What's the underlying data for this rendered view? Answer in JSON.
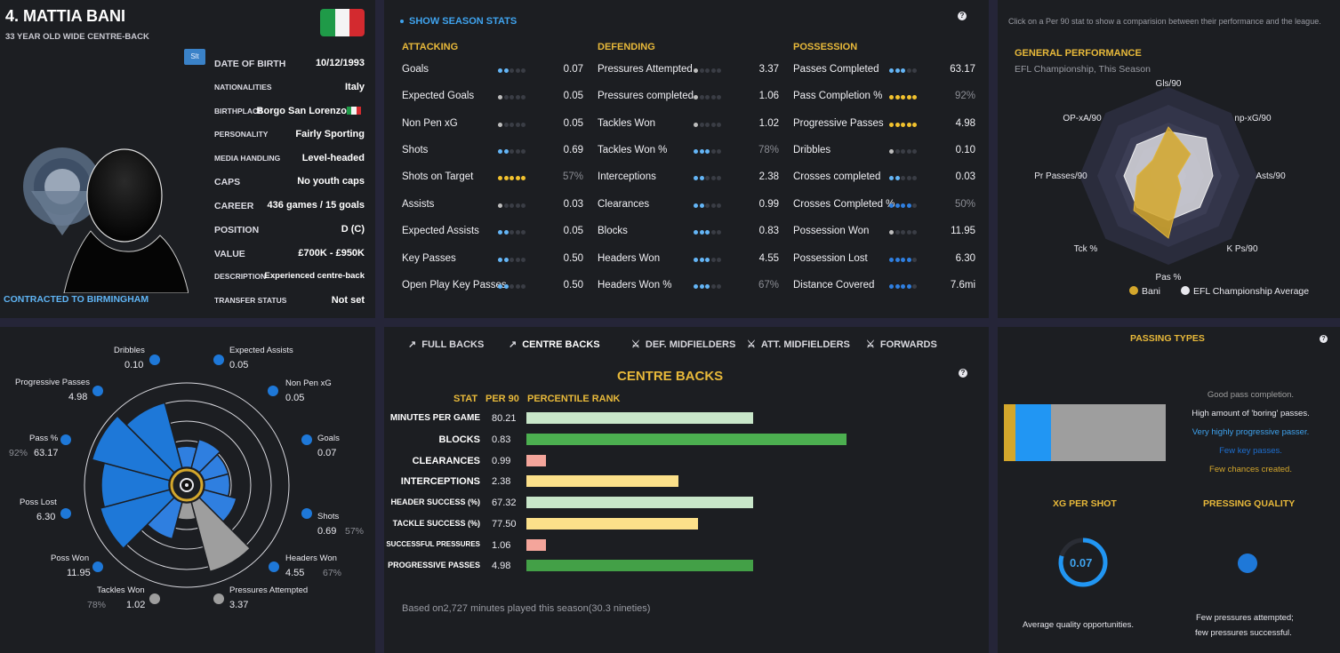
{
  "player": {
    "name": "4. MATTIA BANI",
    "subtitle": "33 YEAR OLD  WIDE CENTRE-BACK",
    "badge": "Slt",
    "contract": "CONTRACTED TO BIRMINGHAM",
    "info": [
      {
        "label": "DATE OF BIRTH",
        "value": "10/12/1993"
      },
      {
        "label": "NATIONALITIES",
        "value": "Italy"
      },
      {
        "label": "BIRTHPLACE",
        "value": "Borgo San Lorenzo"
      },
      {
        "label": "PERSONALITY",
        "value": "Fairly Sporting"
      },
      {
        "label": "MEDIA HANDLING",
        "value": "Level-headed"
      },
      {
        "label": "CAPS",
        "value": "No youth caps"
      },
      {
        "label": "CAREER",
        "value": "436 games /  15 goals"
      },
      {
        "label": "POSITION",
        "value": "D (C)"
      },
      {
        "label": "VALUE",
        "value": "£700K - £950K"
      },
      {
        "label": "DESCRIPTION",
        "value": "Experienced centre-back"
      },
      {
        "label": "TRANSFER STATUS",
        "value": "Not set"
      }
    ]
  },
  "season": {
    "toggle": "SHOW SEASON STATS",
    "help": "?",
    "attacking": {
      "title": "ATTACKING",
      "rows": [
        {
          "label": "Goals",
          "value": "0.07",
          "dots": 2,
          "color": "blue"
        },
        {
          "label": "Expected Goals",
          "value": "0.05",
          "dots": 1,
          "color": "grey"
        },
        {
          "label": "Non Pen xG",
          "value": "0.05",
          "dots": 1,
          "color": "grey"
        },
        {
          "label": "Shots",
          "value": "0.69",
          "dots": 2,
          "color": "blue"
        },
        {
          "label": "Shots on Target",
          "value": "57%",
          "dots": 5,
          "color": "gold",
          "pct": true
        },
        {
          "label": "Assists",
          "value": "0.03",
          "dots": 1,
          "color": "grey"
        },
        {
          "label": "Expected Assists",
          "value": "0.05",
          "dots": 2,
          "color": "blue"
        },
        {
          "label": "Key Passes",
          "value": "0.50",
          "dots": 2,
          "color": "blue"
        },
        {
          "label": "Open Play Key Passes",
          "value": "0.50",
          "dots": 2,
          "color": "blue"
        }
      ]
    },
    "defending": {
      "title": "DEFENDING",
      "rows": [
        {
          "label": "Pressures Attempted",
          "value": "3.37",
          "dots": 1,
          "color": "grey"
        },
        {
          "label": "Pressures completed",
          "value": "1.06",
          "dots": 1,
          "color": "grey"
        },
        {
          "label": "Tackles Won",
          "value": "1.02",
          "dots": 1,
          "color": "grey"
        },
        {
          "label": "Tackles Won %",
          "value": "78%",
          "dots": 3,
          "color": "blue",
          "pct": true
        },
        {
          "label": "Interceptions",
          "value": "2.38",
          "dots": 2,
          "color": "blue"
        },
        {
          "label": "Clearances",
          "value": "0.99",
          "dots": 2,
          "color": "blue"
        },
        {
          "label": "Blocks",
          "value": "0.83",
          "dots": 3,
          "color": "blue"
        },
        {
          "label": "Headers Won",
          "value": "4.55",
          "dots": 3,
          "color": "blue"
        },
        {
          "label": "Headers Won %",
          "value": "67%",
          "dots": 3,
          "color": "blue",
          "pct": true
        }
      ]
    },
    "possession": {
      "title": "POSSESSION",
      "rows": [
        {
          "label": "Passes Completed",
          "value": "63.17",
          "dots": 3,
          "color": "blue"
        },
        {
          "label": "Pass Completion %",
          "value": "92%",
          "dots": 5,
          "color": "gold",
          "pct": true
        },
        {
          "label": "Progressive Passes",
          "value": "4.98",
          "dots": 5,
          "color": "gold"
        },
        {
          "label": "Dribbles",
          "value": "0.10",
          "dots": 1,
          "color": "grey"
        },
        {
          "label": "Crosses completed",
          "value": "0.03",
          "dots": 2,
          "color": "blue"
        },
        {
          "label": "Crosses Completed %",
          "value": "50%",
          "dots": 4,
          "color": "dblue",
          "pct": true
        },
        {
          "label": "Possession Won",
          "value": "11.95",
          "dots": 1,
          "color": "grey"
        },
        {
          "label": "Possession Lost",
          "value": "6.30",
          "dots": 4,
          "color": "dblue"
        },
        {
          "label": "Distance Covered",
          "value": "7.6mi",
          "dots": 4,
          "color": "dblue"
        }
      ]
    }
  },
  "general": {
    "hint": "Click on a Per 90 stat to show a comparision between their performance and the league.",
    "title": "GENERAL PERFORMANCE",
    "subtitle": "EFL Championship, This Season",
    "axes": [
      "Gls/90",
      "np-xG/90",
      "Asts/90",
      "K Ps/90",
      "Pas %",
      "Tck %",
      "Pr Passes/90",
      "OP-xA/90"
    ],
    "legend": {
      "player": "Bani",
      "league": "EFL Championship Average"
    },
    "player_values": [
      0.55,
      0.35,
      0.1,
      0.2,
      0.7,
      0.55,
      0.35,
      0.25
    ],
    "league_values": [
      0.5,
      0.6,
      0.5,
      0.5,
      0.5,
      0.5,
      0.5,
      0.5
    ]
  },
  "polar": {
    "labels": [
      {
        "name": "Dribbles",
        "value": "0.10"
      },
      {
        "name": "Expected Assists",
        "value": "0.05"
      },
      {
        "name": "Non Pen xG",
        "value": "0.05"
      },
      {
        "name": "Goals",
        "value": "0.07"
      },
      {
        "name": "Shots",
        "value": "0.69",
        "pct": "57%"
      },
      {
        "name": "Headers Won",
        "value": "4.55",
        "pct": "67%"
      },
      {
        "name": "Pressures Attempted",
        "value": "3.37"
      },
      {
        "name": "Tackles Won",
        "value": "1.02",
        "pct": "78%"
      },
      {
        "name": "Poss Won",
        "value": "11.95"
      },
      {
        "name": "Poss Lost",
        "value": "6.30"
      },
      {
        "name": "Pass %",
        "value": "63.17",
        "pct": "92%"
      },
      {
        "name": "Progressive Passes",
        "value": "4.98"
      }
    ]
  },
  "positions": {
    "tabs": [
      "FULL BACKS",
      "CENTRE BACKS",
      "DEF. MIDFIELDERS",
      "ATT. MIDFIELDERS",
      "FORWARDS"
    ],
    "title": "CENTRE BACKS",
    "help": "?",
    "headers": {
      "stat": "STAT",
      "per90": "PER 90",
      "rank": "PERCENTILE RANK"
    },
    "rows": [
      {
        "label": "MINUTES PER GAME",
        "value": "80.21",
        "rank": 0.7,
        "color": "#c8e6c9"
      },
      {
        "label": "BLOCKS",
        "value": "0.83",
        "rank": 0.99,
        "color": "#4caf50"
      },
      {
        "label": "CLEARANCES",
        "value": "0.99",
        "rank": 0.06,
        "color": "#f4a59b"
      },
      {
        "label": "INTERCEPTIONS",
        "value": "2.38",
        "rank": 0.47,
        "color": "#fce08a"
      },
      {
        "label": "HEADER SUCCESS (%)",
        "value": "67.32",
        "rank": 0.7,
        "color": "#c8e6c9"
      },
      {
        "label": "TACKLE SUCCESS (%)",
        "value": "77.50",
        "rank": 0.53,
        "color": "#fce08a"
      },
      {
        "label": "SUCCESSFUL PRESSURES",
        "value": "1.06",
        "rank": 0.06,
        "color": "#f4a59b"
      },
      {
        "label": "PROGRESSIVE PASSES",
        "value": "4.98",
        "rank": 0.7,
        "color": "#43a047"
      }
    ],
    "footer": "Based on2,727 minutes played this season(30.3 nineties)"
  },
  "passing": {
    "title": "PASSING TYPES",
    "help": "?",
    "segments": [
      {
        "share": 0.07,
        "color": "#d4a72c"
      },
      {
        "share": 0.22,
        "color": "#2196f3"
      },
      {
        "share": 0.71,
        "color": "#9e9e9e"
      }
    ],
    "notes": [
      {
        "text": "Good pass completion.",
        "color": "#9e9e9e"
      },
      {
        "text": "High amount of 'boring' passes.",
        "color": "#e8e8ee"
      },
      {
        "text": "Very highly progressive passer.",
        "color": "#3fa3ee"
      },
      {
        "text": "Few key passes.",
        "color": "#1e6fd0"
      },
      {
        "text": "Few chances created.",
        "color": "#d4a72c"
      }
    ],
    "xg": {
      "title": "XG PER SHOT",
      "value": "0.07",
      "note": "Average quality opportunities."
    },
    "pressing": {
      "title": "PRESSING QUALITY",
      "note1": "Few pressures attempted;",
      "note2": "few pressures successful."
    }
  }
}
